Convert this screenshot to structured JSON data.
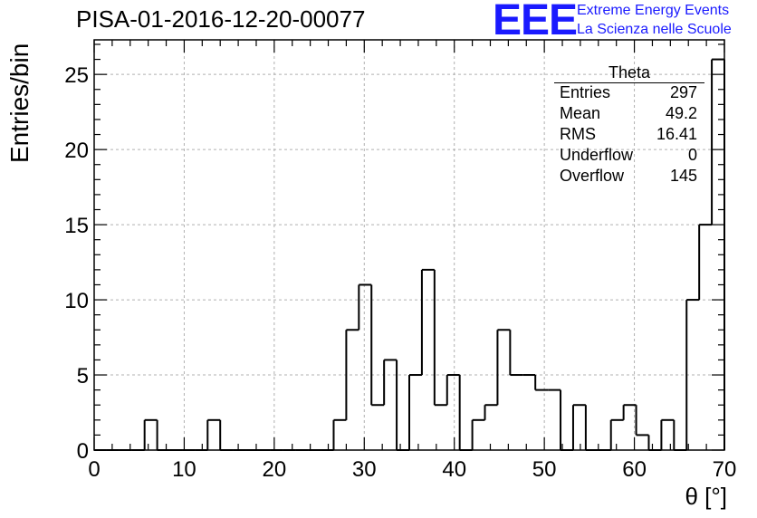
{
  "title": "PISA-01-2016-12-20-00077",
  "logo": {
    "mark": "EEE",
    "line1": "Extreme Energy Events",
    "line2": "La Scienza nelle Scuole"
  },
  "stats": {
    "title": "Theta",
    "rows": [
      {
        "key": "Entries",
        "value": "297"
      },
      {
        "key": "Mean",
        "value": "49.2"
      },
      {
        "key": "RMS",
        "value": "16.41"
      },
      {
        "key": "Underflow",
        "value": "0"
      },
      {
        "key": "Overflow",
        "value": "145"
      }
    ]
  },
  "chart_data": {
    "type": "bar",
    "title": "PISA-01-2016-12-20-00077",
    "xlabel": "θ [°]",
    "ylabel": "Entries/bin",
    "xlim": [
      0,
      70
    ],
    "ylim": [
      0,
      27.3
    ],
    "grid": true,
    "bin_width": 1.4,
    "x_ticks": [
      0,
      10,
      20,
      30,
      40,
      50,
      60,
      70
    ],
    "y_ticks": [
      0,
      5,
      10,
      15,
      20,
      25
    ],
    "values": [
      0,
      0,
      0,
      0,
      2,
      0,
      0,
      0,
      0,
      2,
      0,
      0,
      0,
      0,
      0,
      0,
      0,
      0,
      0,
      2,
      8,
      11,
      3,
      6,
      0,
      5,
      12,
      3,
      5,
      0,
      2,
      3,
      8,
      5,
      5,
      4,
      4,
      0,
      3,
      0,
      0,
      2,
      3,
      1,
      0,
      2,
      0,
      10,
      15,
      26
    ],
    "colors": {
      "line": "#000000",
      "grid": "#b0b0b0",
      "logo": "#1a1aff"
    }
  }
}
